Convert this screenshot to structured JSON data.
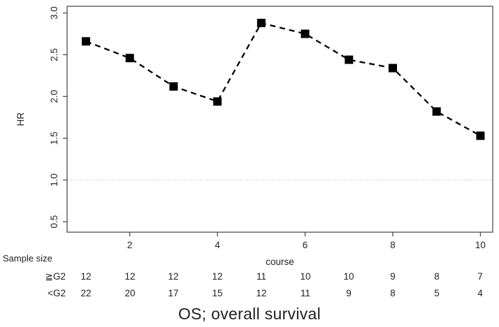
{
  "figure": {
    "caption": "OS; overall survival"
  },
  "chart_data": {
    "type": "line",
    "title": "",
    "xlabel": "course",
    "ylabel": "HR",
    "x": [
      1,
      2,
      3,
      4,
      5,
      6,
      7,
      8,
      9,
      10
    ],
    "series": [
      {
        "name": "HR",
        "values": [
          2.66,
          2.46,
          2.12,
          1.94,
          2.88,
          2.75,
          2.44,
          2.34,
          1.82,
          1.53
        ]
      }
    ],
    "xticks": [
      2,
      4,
      6,
      8,
      10
    ],
    "yticks": [
      0.5,
      1.0,
      1.5,
      2.0,
      2.5,
      3.0
    ],
    "xlim": [
      0.57,
      10.28
    ],
    "ylim": [
      0.375,
      3.08
    ],
    "reference_line": {
      "y": 1.0,
      "style": "dotted",
      "color": "#c3c3c3"
    },
    "line_style": "dashed",
    "marker": "filled-square",
    "grid": false,
    "legend": "none",
    "colors": {
      "series": "#000000",
      "axis": "#4d4d4d",
      "text": "#262626"
    }
  },
  "sample_size_table": {
    "label": "Sample size",
    "rows": [
      {
        "label": "≧G2",
        "values": [
          12,
          12,
          12,
          12,
          11,
          10,
          10,
          9,
          8,
          7
        ]
      },
      {
        "label": "<G2",
        "values": [
          22,
          20,
          17,
          15,
          12,
          11,
          9,
          8,
          5,
          4
        ]
      }
    ]
  }
}
